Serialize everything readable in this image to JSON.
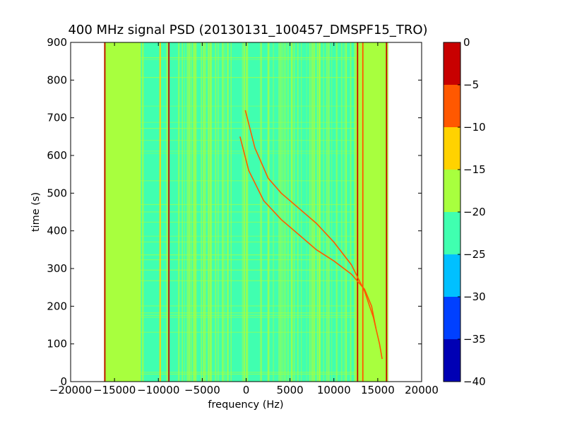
{
  "chart_data": {
    "type": "heatmap",
    "title": "400 MHz signal PSD (20130131_100457_DMSPF15_TRO)",
    "xlabel": "frequency (Hz)",
    "ylabel": "time (s)",
    "xlim": [
      -20000,
      20000
    ],
    "ylim": [
      0,
      900
    ],
    "xticks": [
      -20000,
      -15000,
      -10000,
      -5000,
      0,
      5000,
      10000,
      15000,
      20000
    ],
    "xtick_labels": [
      "−20000",
      "−15000",
      "−10000",
      "−5000",
      "0",
      "5000",
      "10000",
      "15000",
      "20000"
    ],
    "yticks": [
      0,
      100,
      200,
      300,
      400,
      500,
      600,
      700,
      800,
      900
    ],
    "ytick_labels": [
      "0",
      "100",
      "200",
      "300",
      "400",
      "500",
      "600",
      "700",
      "800",
      "900"
    ],
    "data_extent_x": [
      -16200,
      16200
    ],
    "background_level": -20,
    "core_level": -22,
    "core_x": [
      -12000,
      12500
    ],
    "colorbar": {
      "levels": [
        -40,
        -35,
        -30,
        -25,
        -20,
        -15,
        -10,
        -5,
        0
      ],
      "tick_labels": [
        "−40",
        "−35",
        "−30",
        "−25",
        "−20",
        "−15",
        "−10",
        "−5",
        "0"
      ],
      "colors": [
        "#0000b4",
        "#0040ff",
        "#00c0ff",
        "#40ffb0",
        "#a8ff3e",
        "#ffd200",
        "#ff5800",
        "#c80000"
      ]
    },
    "vertical_lines": [
      {
        "x": -16100,
        "level": -2
      },
      {
        "x": -9800,
        "level": -12
      },
      {
        "x": -8800,
        "level": -2
      },
      {
        "x": 12700,
        "level": -2
      },
      {
        "x": 13300,
        "level": -10
      },
      {
        "x": 16000,
        "level": -5
      }
    ],
    "doppler_curves": [
      {
        "level": -8,
        "points": [
          [
            -100,
            720
          ],
          [
            1000,
            620
          ],
          [
            2500,
            540
          ],
          [
            4000,
            500
          ],
          [
            6000,
            460
          ],
          [
            8000,
            420
          ],
          [
            10000,
            370
          ],
          [
            12000,
            310
          ],
          [
            13500,
            240
          ],
          [
            14500,
            170
          ],
          [
            15200,
            100
          ],
          [
            15500,
            60
          ]
        ]
      },
      {
        "level": -8,
        "points": [
          [
            -700,
            650
          ],
          [
            300,
            560
          ],
          [
            2000,
            480
          ],
          [
            4000,
            430
          ],
          [
            6000,
            390
          ],
          [
            8000,
            350
          ],
          [
            10000,
            320
          ],
          [
            12000,
            285
          ],
          [
            13500,
            245
          ],
          [
            14300,
            200
          ],
          [
            14800,
            140
          ]
        ]
      }
    ]
  }
}
